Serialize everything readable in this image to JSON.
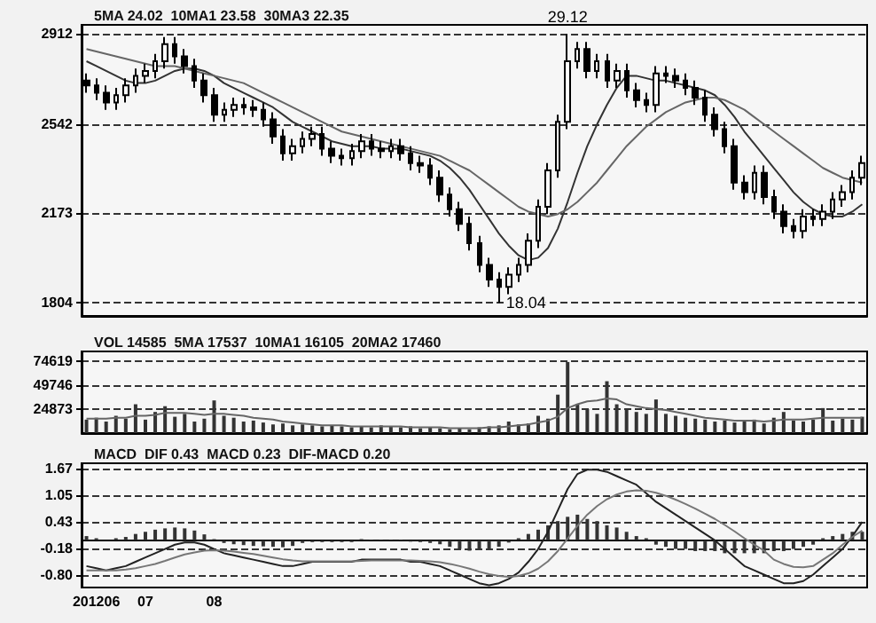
{
  "chart_data": [
    {
      "type": "candlestick",
      "title": "5MA 24.02  10MA1 23.58  30MA3 22.35",
      "color": "#000000",
      "marker": "none",
      "grid": "y",
      "tick_labels": "y",
      "categories": [
        null,
        null,
        null,
        null,
        null,
        null,
        null,
        null,
        null,
        null,
        null,
        null,
        null,
        null,
        null,
        null,
        null,
        null,
        null,
        null,
        null,
        null,
        null,
        null,
        null,
        null,
        null,
        null,
        null,
        null,
        null,
        null,
        null,
        null,
        null,
        null,
        null,
        null,
        null,
        null,
        null,
        null,
        null,
        null,
        null,
        null,
        null,
        null,
        null,
        null,
        null,
        null,
        null,
        null,
        null,
        null,
        null,
        null,
        null,
        null,
        null,
        null,
        null,
        null,
        null,
        null,
        null,
        null,
        null,
        null,
        null,
        null,
        null,
        null,
        null,
        null,
        null,
        null,
        null,
        null
      ],
      "ohlc": [
        [
          2720,
          2750,
          2670,
          2700
        ],
        [
          2700,
          2730,
          2640,
          2670
        ],
        [
          2670,
          2700,
          2600,
          2630
        ],
        [
          2630,
          2690,
          2600,
          2660
        ],
        [
          2660,
          2730,
          2630,
          2700
        ],
        [
          2700,
          2770,
          2670,
          2740
        ],
        [
          2740,
          2790,
          2710,
          2760
        ],
        [
          2760,
          2830,
          2730,
          2800
        ],
        [
          2800,
          2900,
          2770,
          2870
        ],
        [
          2870,
          2900,
          2790,
          2820
        ],
        [
          2820,
          2850,
          2750,
          2780
        ],
        [
          2780,
          2810,
          2690,
          2720
        ],
        [
          2720,
          2750,
          2630,
          2660
        ],
        [
          2660,
          2690,
          2550,
          2580
        ],
        [
          2580,
          2630,
          2550,
          2600
        ],
        [
          2600,
          2650,
          2570,
          2620
        ],
        [
          2620,
          2650,
          2580,
          2610
        ],
        [
          2610,
          2640,
          2570,
          2600
        ],
        [
          2600,
          2630,
          2530,
          2560
        ],
        [
          2560,
          2590,
          2460,
          2490
        ],
        [
          2490,
          2520,
          2390,
          2420
        ],
        [
          2420,
          2480,
          2390,
          2450
        ],
        [
          2450,
          2510,
          2420,
          2480
        ],
        [
          2480,
          2530,
          2450,
          2500
        ],
        [
          2500,
          2530,
          2410,
          2440
        ],
        [
          2440,
          2470,
          2380,
          2410
        ],
        [
          2410,
          2440,
          2370,
          2400
        ],
        [
          2400,
          2460,
          2370,
          2430
        ],
        [
          2430,
          2500,
          2400,
          2470
        ],
        [
          2470,
          2500,
          2410,
          2440
        ],
        [
          2440,
          2470,
          2400,
          2430
        ],
        [
          2430,
          2480,
          2400,
          2450
        ],
        [
          2450,
          2480,
          2390,
          2420
        ],
        [
          2420,
          2450,
          2350,
          2380
        ],
        [
          2380,
          2410,
          2340,
          2370
        ],
        [
          2370,
          2400,
          2290,
          2320
        ],
        [
          2320,
          2350,
          2220,
          2250
        ],
        [
          2250,
          2280,
          2160,
          2190
        ],
        [
          2190,
          2220,
          2100,
          2130
        ],
        [
          2130,
          2160,
          2020,
          2050
        ],
        [
          2050,
          2080,
          1930,
          1960
        ],
        [
          1960,
          1990,
          1870,
          1900
        ],
        [
          1900,
          1930,
          1804,
          1870
        ],
        [
          1870,
          1950,
          1840,
          1920
        ],
        [
          1920,
          1990,
          1890,
          1960
        ],
        [
          1960,
          2090,
          1930,
          2060
        ],
        [
          2060,
          2230,
          2030,
          2200
        ],
        [
          2200,
          2380,
          2170,
          2350
        ],
        [
          2350,
          2580,
          2320,
          2550
        ],
        [
          2550,
          2912,
          2520,
          2800
        ],
        [
          2800,
          2880,
          2770,
          2850
        ],
        [
          2850,
          2880,
          2730,
          2760
        ],
        [
          2760,
          2830,
          2730,
          2800
        ],
        [
          2800,
          2830,
          2690,
          2720
        ],
        [
          2720,
          2790,
          2690,
          2760
        ],
        [
          2760,
          2790,
          2650,
          2680
        ],
        [
          2680,
          2710,
          2610,
          2640
        ],
        [
          2640,
          2670,
          2590,
          2620
        ],
        [
          2620,
          2780,
          2590,
          2750
        ],
        [
          2750,
          2780,
          2710,
          2740
        ],
        [
          2740,
          2770,
          2690,
          2720
        ],
        [
          2720,
          2750,
          2660,
          2690
        ],
        [
          2690,
          2720,
          2620,
          2650
        ],
        [
          2650,
          2680,
          2550,
          2580
        ],
        [
          2580,
          2610,
          2490,
          2520
        ],
        [
          2520,
          2550,
          2420,
          2450
        ],
        [
          2450,
          2480,
          2270,
          2300
        ],
        [
          2300,
          2330,
          2230,
          2260
        ],
        [
          2260,
          2370,
          2230,
          2340
        ],
        [
          2340,
          2370,
          2210,
          2240
        ],
        [
          2240,
          2270,
          2150,
          2180
        ],
        [
          2180,
          2210,
          2090,
          2120
        ],
        [
          2120,
          2150,
          2070,
          2100
        ],
        [
          2100,
          2190,
          2070,
          2160
        ],
        [
          2160,
          2190,
          2120,
          2150
        ],
        [
          2150,
          2210,
          2120,
          2180
        ],
        [
          2180,
          2260,
          2150,
          2230
        ],
        [
          2230,
          2290,
          2200,
          2260
        ],
        [
          2260,
          2350,
          2230,
          2320
        ],
        [
          2320,
          2410,
          2290,
          2380
        ]
      ],
      "series": [
        {
          "type": "line",
          "color": "#333333",
          "values": [
            2800,
            2780,
            2760,
            2740,
            2720,
            2710,
            2710,
            2720,
            2740,
            2760,
            2770,
            2770,
            2760,
            2740,
            2710,
            2690,
            2670,
            2650,
            2630,
            2610,
            2580,
            2550,
            2530,
            2510,
            2490,
            2470,
            2460,
            2450,
            2450,
            2450,
            2440,
            2440,
            2440,
            2430,
            2420,
            2410,
            2390,
            2360,
            2320,
            2270,
            2210,
            2150,
            2090,
            2040,
            2000,
            1980,
            1990,
            2030,
            2110,
            2220,
            2340,
            2450,
            2540,
            2620,
            2690,
            2740,
            2740,
            2730,
            2720,
            2720,
            2710,
            2700,
            2690,
            2680,
            2660,
            2620,
            2570,
            2510,
            2460,
            2410,
            2360,
            2310,
            2260,
            2220,
            2190,
            2170,
            2160,
            2160,
            2180,
            2210
          ]
        },
        {
          "type": "line",
          "color": "#666666",
          "values": [
            2850,
            2840,
            2830,
            2820,
            2810,
            2800,
            2790,
            2780,
            2780,
            2780,
            2770,
            2760,
            2750,
            2740,
            2730,
            2720,
            2710,
            2690,
            2670,
            2650,
            2630,
            2610,
            2590,
            2570,
            2550,
            2530,
            2510,
            2500,
            2490,
            2480,
            2470,
            2460,
            2450,
            2440,
            2430,
            2420,
            2410,
            2390,
            2370,
            2350,
            2320,
            2290,
            2260,
            2230,
            2200,
            2180,
            2170,
            2160,
            2170,
            2190,
            2220,
            2260,
            2300,
            2350,
            2400,
            2450,
            2490,
            2530,
            2560,
            2590,
            2610,
            2630,
            2640,
            2650,
            2650,
            2640,
            2620,
            2600,
            2570,
            2540,
            2510,
            2480,
            2450,
            2420,
            2390,
            2360,
            2340,
            2320,
            2310,
            2300
          ]
        }
      ],
      "ylim": [
        1750,
        2950
      ],
      "yticks": [
        1804,
        2173,
        2542,
        2912
      ],
      "annotations": [
        {
          "text": "29.12",
          "y": 2912
        },
        "18.04"
      ]
    },
    {
      "type": "bar",
      "title": "VOL 14585  5MA 17537  10MA1 16105  20MA2 17460",
      "marker": "none",
      "grid": "y",
      "tick_labels": "y",
      "categories": [
        null,
        null,
        null,
        null,
        null,
        null,
        null,
        null,
        null,
        null,
        null,
        null,
        null,
        null,
        null,
        null,
        null,
        null,
        null,
        null,
        null,
        null,
        null,
        null,
        null,
        null,
        null,
        null,
        null,
        null,
        null,
        null,
        null,
        null,
        null,
        null,
        null,
        null,
        null,
        null,
        null,
        null,
        null,
        null,
        null,
        null,
        null,
        null,
        null,
        null,
        null,
        null,
        null,
        null,
        null,
        null,
        null,
        null,
        null,
        null,
        null,
        null,
        null,
        null,
        null,
        null,
        null,
        null,
        null,
        null,
        null,
        null,
        null,
        null,
        null,
        null,
        null,
        null,
        null,
        null
      ],
      "series": [
        {
          "type": "bar",
          "color": "#333333",
          "values": [
            14000,
            16000,
            12000,
            18000,
            15000,
            30000,
            14000,
            22000,
            28000,
            17000,
            20000,
            12000,
            15000,
            34000,
            18000,
            16000,
            12000,
            13000,
            11000,
            9000,
            10000,
            8000,
            9000,
            8000,
            7000,
            8000,
            7000,
            6000,
            7000,
            6000,
            8000,
            7000,
            6000,
            7000,
            5000,
            6000,
            5000,
            4000,
            5000,
            4000,
            6000,
            7000,
            8000,
            12000,
            9000,
            10000,
            18000,
            15000,
            40000,
            74000,
            30000,
            25000,
            20000,
            54000,
            30000,
            25000,
            22000,
            20000,
            35000,
            20000,
            18000,
            16000,
            15000,
            14000,
            12000,
            13000,
            11000,
            12000,
            14000,
            10000,
            16000,
            22000,
            13000,
            12000,
            14000,
            26000,
            13000,
            15000,
            14000,
            17000
          ]
        },
        {
          "type": "line",
          "color": "#666666",
          "values": [
            15000,
            15000,
            15000,
            16000,
            16000,
            18000,
            18000,
            19000,
            21000,
            21000,
            21000,
            20000,
            19000,
            20000,
            20000,
            19000,
            18000,
            16000,
            15000,
            14000,
            12000,
            11000,
            10000,
            9000,
            8000,
            8000,
            8000,
            7000,
            7000,
            7000,
            7000,
            7000,
            7000,
            6000,
            6000,
            6000,
            6000,
            5000,
            5000,
            5000,
            5000,
            6000,
            6000,
            7000,
            8000,
            9000,
            11000,
            13000,
            17000,
            26000,
            30000,
            33000,
            34000,
            36000,
            35000,
            30000,
            28000,
            26000,
            25000,
            24000,
            22000,
            20000,
            18000,
            16000,
            15000,
            14000,
            13000,
            13000,
            13000,
            12000,
            13000,
            14000,
            14000,
            14000,
            15000,
            16000,
            16000,
            16000,
            16000,
            16000
          ]
        }
      ],
      "ylim": [
        0,
        85000
      ],
      "yticks": [
        24873,
        49746,
        74619
      ]
    },
    {
      "type": "line",
      "title": "MACD  DIF 0.43  MACD 0.23  DIF-MACD 0.20",
      "marker": "none",
      "grid": "y",
      "categories": [
        null,
        "201206",
        null,
        null,
        null,
        null,
        "07",
        null,
        null,
        null,
        null,
        null,
        null,
        "08",
        null,
        null,
        null,
        null,
        null,
        null,
        null,
        null,
        null,
        null,
        null,
        null,
        null,
        null,
        null,
        null,
        null,
        null,
        null,
        null,
        null,
        null,
        null,
        null,
        null,
        null,
        null,
        null,
        null,
        null,
        null,
        null,
        null,
        null,
        null,
        null,
        null,
        null,
        null,
        null,
        null,
        null,
        null,
        null,
        null,
        null,
        null,
        null,
        null,
        null,
        null,
        null,
        null,
        null,
        null,
        null,
        null,
        null,
        null,
        null,
        null,
        null,
        null,
        null,
        null,
        null
      ],
      "series": [
        {
          "type": "bar",
          "color": "#333333",
          "values": [
            0.1,
            0.05,
            0,
            0.05,
            0.08,
            0.15,
            0.2,
            0.25,
            0.28,
            0.3,
            0.28,
            0.23,
            0.14,
            0.03,
            -0.06,
            -0.09,
            -0.11,
            -0.13,
            -0.14,
            -0.15,
            -0.16,
            -0.13,
            -0.06,
            -0.04,
            -0.04,
            -0.04,
            -0.04,
            -0.04,
            0.03,
            0.02,
            0.02,
            0.02,
            0.02,
            -0.03,
            -0.04,
            -0.06,
            -0.09,
            -0.15,
            -0.2,
            -0.24,
            -0.2,
            -0.2,
            -0.15,
            -0.05,
            0.05,
            0.15,
            0.25,
            0.35,
            0.45,
            0.55,
            0.6,
            0.5,
            0.45,
            0.35,
            0.3,
            0.2,
            0.1,
            0.05,
            -0.1,
            -0.15,
            -0.2,
            -0.2,
            -0.25,
            -0.25,
            -0.25,
            -0.3,
            -0.3,
            -0.3,
            -0.3,
            -0.3,
            -0.25,
            -0.25,
            -0.2,
            -0.15,
            -0.1,
            0.05,
            0.1,
            0.15,
            0.2,
            0.2
          ]
        },
        {
          "type": "line",
          "color": "#222222",
          "values": [
            -0.6,
            -0.65,
            -0.7,
            -0.65,
            -0.6,
            -0.5,
            -0.4,
            -0.3,
            -0.2,
            -0.1,
            -0.05,
            -0.05,
            -0.1,
            -0.2,
            -0.3,
            -0.35,
            -0.4,
            -0.45,
            -0.5,
            -0.55,
            -0.6,
            -0.6,
            -0.55,
            -0.5,
            -0.5,
            -0.5,
            -0.5,
            -0.5,
            -0.45,
            -0.45,
            -0.45,
            -0.45,
            -0.45,
            -0.5,
            -0.5,
            -0.55,
            -0.6,
            -0.7,
            -0.8,
            -0.9,
            -1.0,
            -1.05,
            -1.0,
            -0.9,
            -0.75,
            -0.5,
            -0.2,
            0.2,
            0.7,
            1.2,
            1.55,
            1.65,
            1.65,
            1.6,
            1.5,
            1.4,
            1.3,
            1.1,
            0.9,
            0.75,
            0.6,
            0.45,
            0.3,
            0.15,
            0.0,
            -0.2,
            -0.4,
            -0.6,
            -0.7,
            -0.8,
            -0.9,
            -1.0,
            -1.0,
            -0.95,
            -0.8,
            -0.6,
            -0.4,
            -0.2,
            0.1,
            0.43
          ]
        },
        {
          "type": "line",
          "color": "#777777",
          "values": [
            -0.7,
            -0.7,
            -0.7,
            -0.7,
            -0.68,
            -0.65,
            -0.6,
            -0.55,
            -0.48,
            -0.4,
            -0.33,
            -0.28,
            -0.24,
            -0.23,
            -0.24,
            -0.26,
            -0.29,
            -0.32,
            -0.36,
            -0.4,
            -0.44,
            -0.47,
            -0.49,
            -0.49,
            -0.49,
            -0.49,
            -0.49,
            -0.49,
            -0.48,
            -0.47,
            -0.47,
            -0.47,
            -0.47,
            -0.47,
            -0.48,
            -0.49,
            -0.51,
            -0.55,
            -0.6,
            -0.66,
            -0.73,
            -0.79,
            -0.83,
            -0.85,
            -0.83,
            -0.77,
            -0.66,
            -0.49,
            -0.25,
            0.04,
            0.34,
            0.6,
            0.8,
            0.96,
            1.07,
            1.14,
            1.17,
            1.16,
            1.11,
            1.04,
            0.95,
            0.85,
            0.74,
            0.62,
            0.5,
            0.36,
            0.21,
            0.05,
            -0.1,
            -0.24,
            -0.45,
            -0.55,
            -0.62,
            -0.63,
            -0.6,
            -0.45,
            -0.3,
            -0.1,
            0.08,
            0.23
          ]
        }
      ],
      "ylim": [
        -1.1,
        1.8
      ],
      "yticks": [
        {
          "value": -0.8,
          "label": "-0.80"
        },
        -0.18,
        0.43,
        1.05,
        1.67
      ]
    }
  ]
}
